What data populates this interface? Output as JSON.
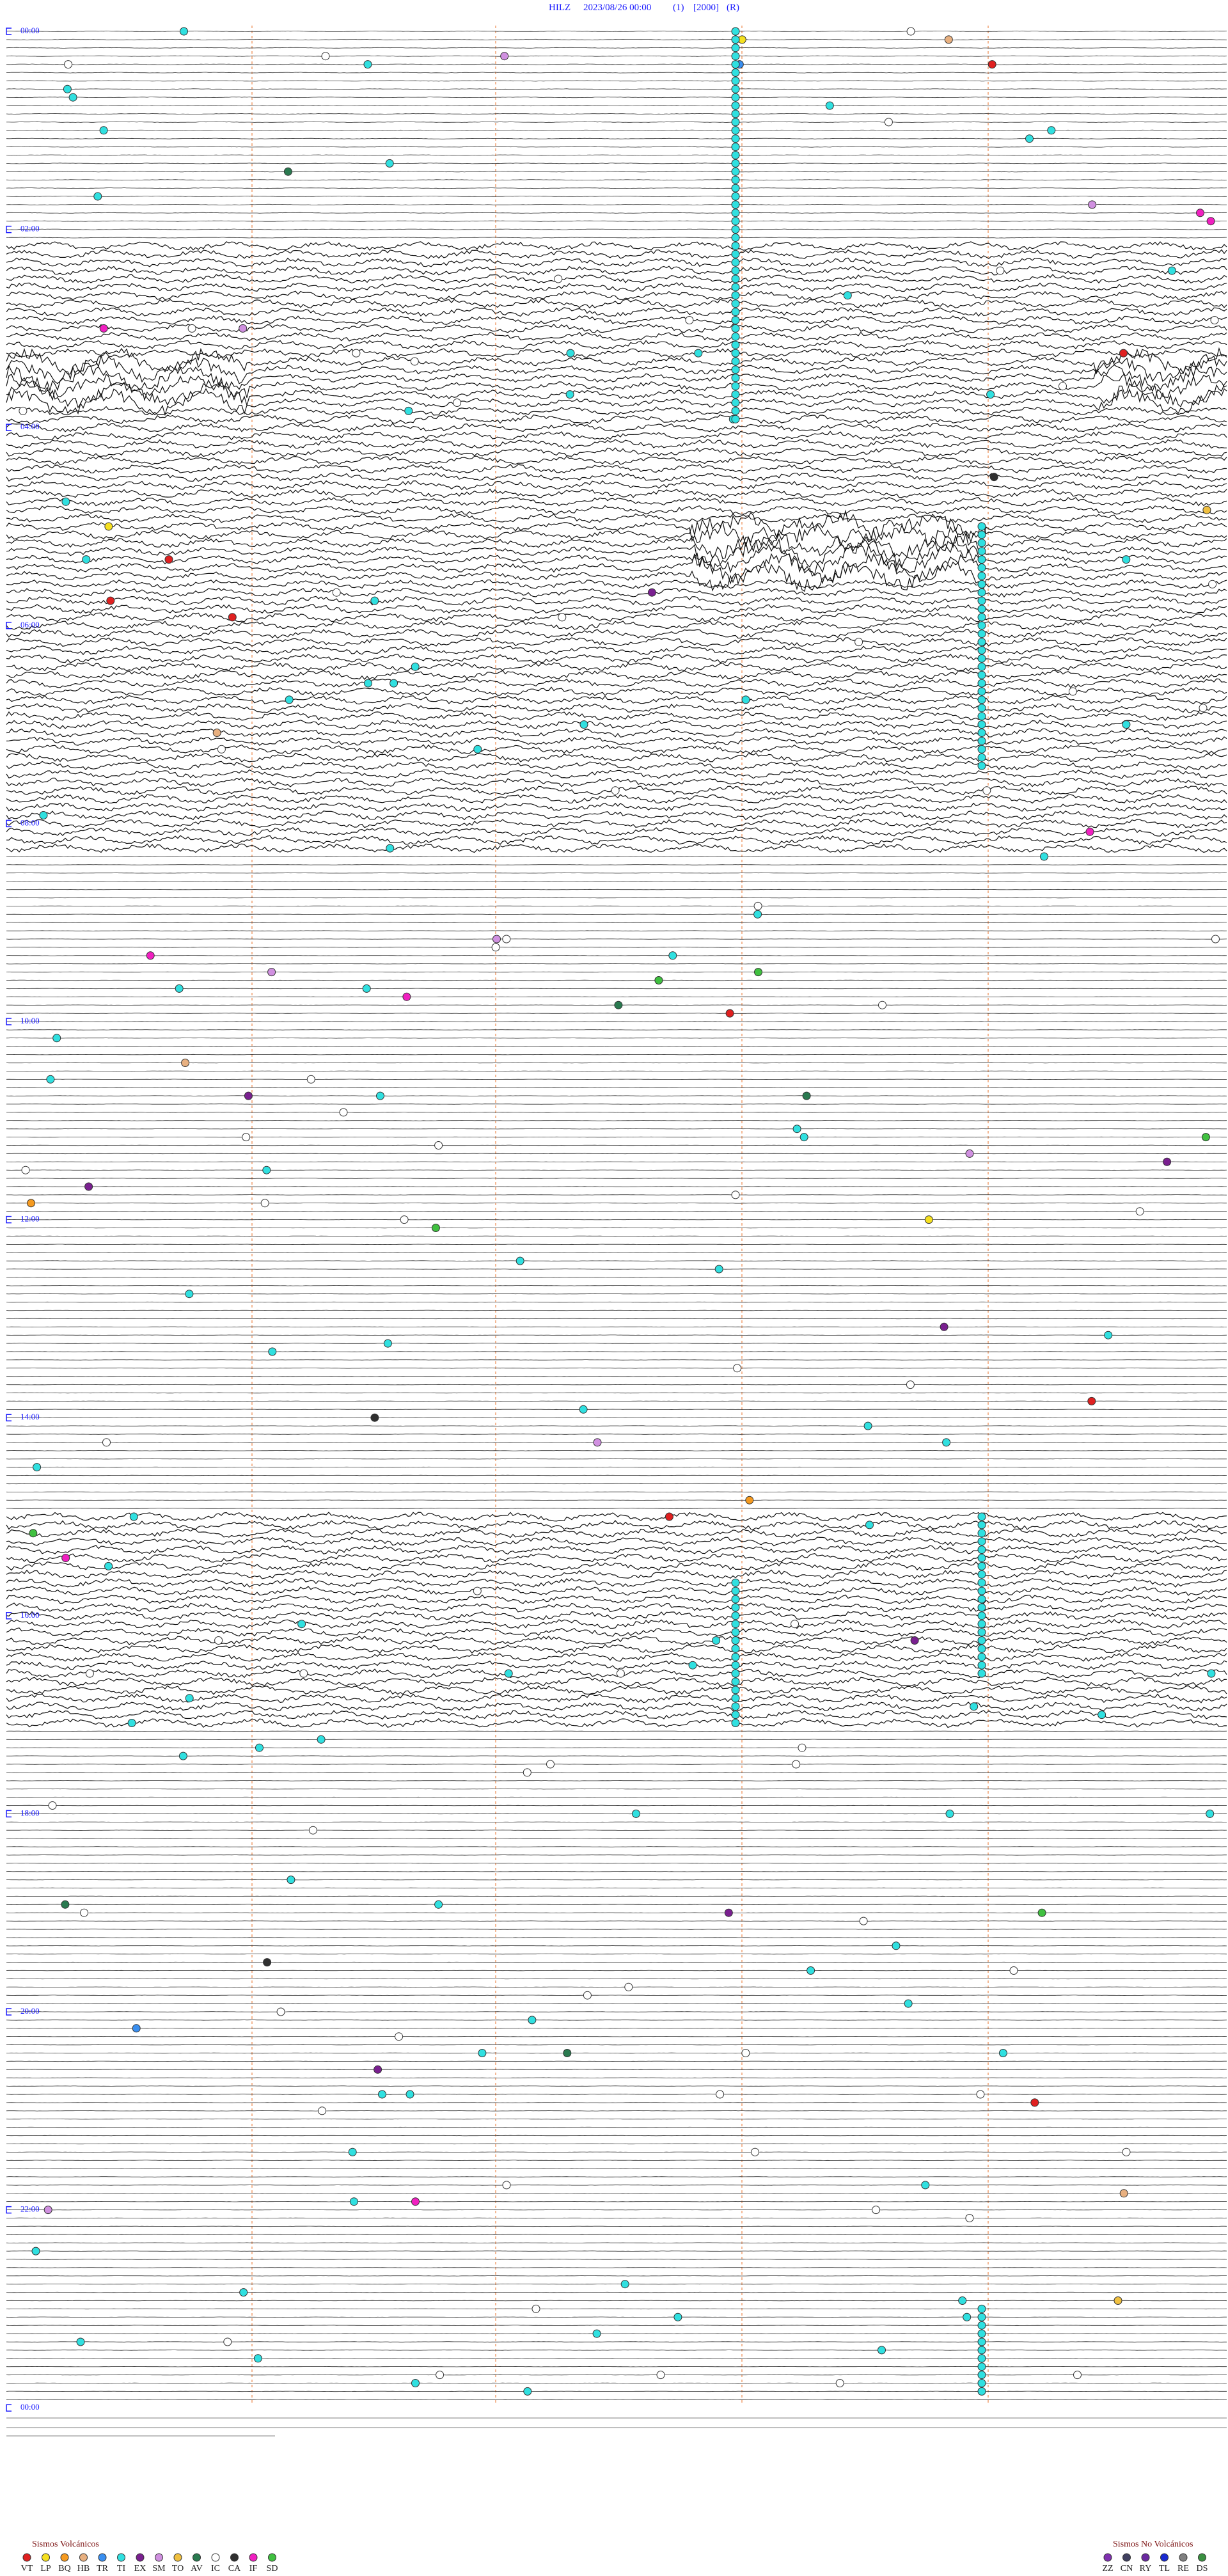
{
  "header": {
    "station": "HILZ",
    "datetime": "2023/08/26 00:00",
    "channel": "(1)",
    "scale": "[2000]",
    "mode": "(R)"
  },
  "time_labels": [
    "00:00",
    "02:00",
    "04:00",
    "06:00",
    "08:00",
    "10:00",
    "12:00",
    "14:00",
    "16:00",
    "18:00",
    "20:00",
    "22:00",
    "00:00"
  ],
  "legend_volcanic": {
    "title": "Sismos Volcánicos",
    "items": [
      {
        "code": "VT",
        "color": "#e02020"
      },
      {
        "code": "LP",
        "color": "#f5e020"
      },
      {
        "code": "BQ",
        "color": "#f59a20"
      },
      {
        "code": "HB",
        "color": "#e8b080"
      },
      {
        "code": "TR",
        "color": "#3a8ff0"
      },
      {
        "code": "TI",
        "color": "#30e0e0"
      },
      {
        "code": "EX",
        "color": "#7a2090"
      },
      {
        "code": "SM",
        "color": "#d090e0"
      },
      {
        "code": "TO",
        "color": "#f0c040"
      },
      {
        "code": "AV",
        "color": "#2a7a50"
      },
      {
        "code": "IC",
        "color": "#ffffff"
      },
      {
        "code": "CA",
        "color": "#303030"
      },
      {
        "code": "IF",
        "color": "#f020c0"
      },
      {
        "code": "SD",
        "color": "#40c040"
      }
    ]
  },
  "legend_nonvolcanic": {
    "title": "Sismos No Volcánicos",
    "items": [
      {
        "code": "ZZ",
        "color": "#8030b0"
      },
      {
        "code": "CN",
        "color": "#404060"
      },
      {
        "code": "RY",
        "color": "#6a2aa0"
      },
      {
        "code": "TL",
        "color": "#1a2ad0"
      },
      {
        "code": "RE",
        "color": "#808080"
      },
      {
        "code": "DS",
        "color": "#3a9040"
      }
    ]
  }
}
